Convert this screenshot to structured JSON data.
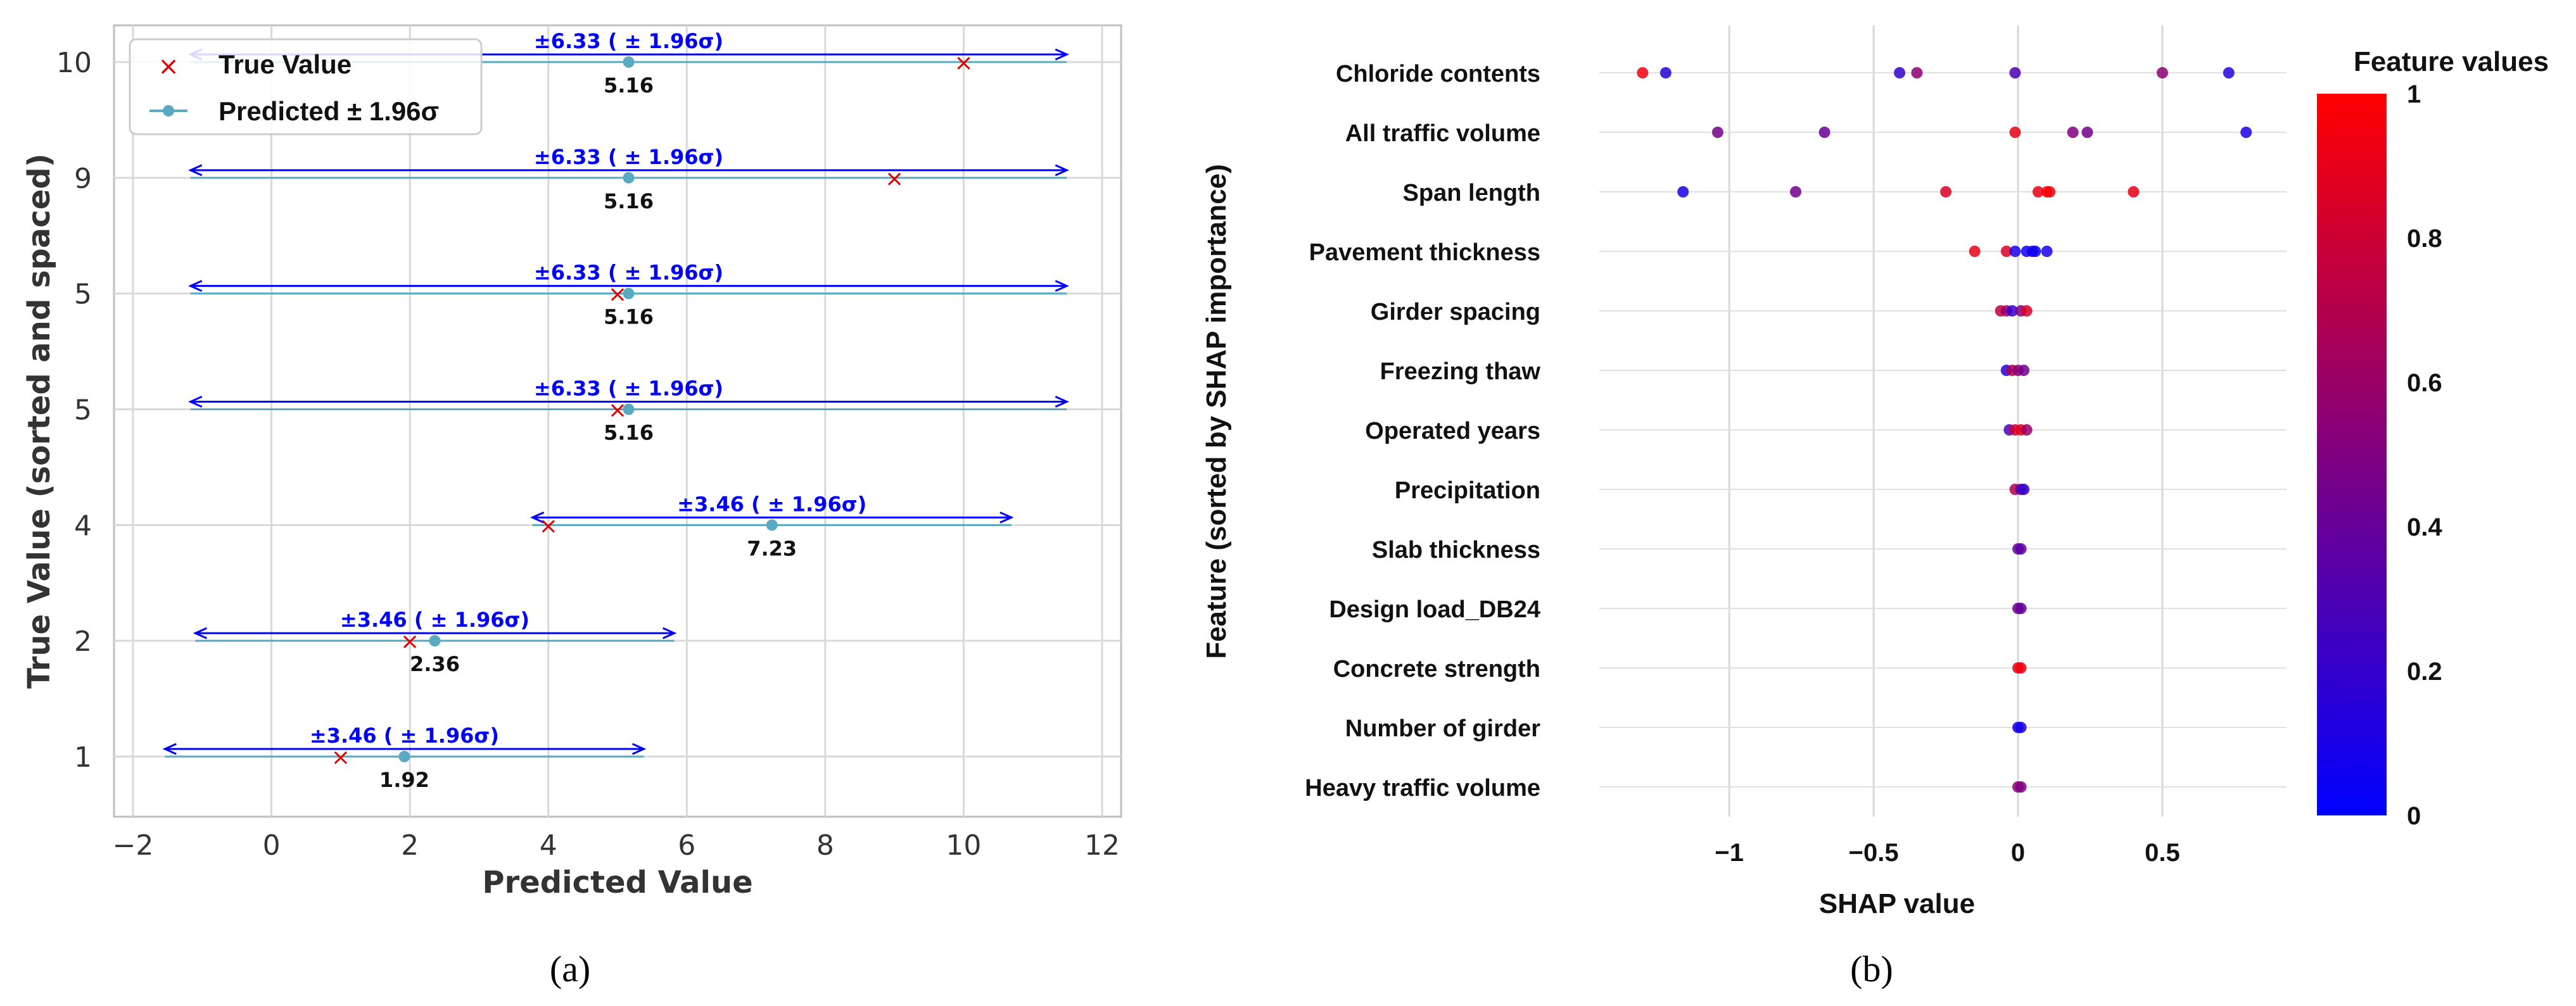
{
  "chart_data": [
    {
      "type": "scatter",
      "panel_label": "(a)",
      "xlabel": "Predicted Value",
      "ylabel": "True Value (sorted and spaced)",
      "xlim": [
        -2,
        12
      ],
      "x_ticks": [
        -2,
        0,
        2,
        4,
        6,
        8,
        10,
        12
      ],
      "x_tick_labels": [
        "−2",
        "0",
        "2",
        "4",
        "6",
        "8",
        "10",
        "12"
      ],
      "y_tick_labels": [
        "1",
        "2",
        "4",
        "5",
        "5",
        "9",
        "10"
      ],
      "legend": {
        "position": "top-left",
        "entries": [
          {
            "name": "True Value",
            "marker": "×",
            "color": "#e00000"
          },
          {
            "name": "Predicted ± 1.96σ",
            "marker": "●",
            "color": "#5aa9c2"
          }
        ]
      },
      "rows": [
        {
          "true_value": 1,
          "predicted": 1.92,
          "low": -1.54,
          "high": 5.38,
          "pred_label": "1.92",
          "interval_label": "±3.46 ( ± 1.96σ)"
        },
        {
          "true_value": 2,
          "predicted": 2.36,
          "low": -1.1,
          "high": 5.82,
          "pred_label": "2.36",
          "interval_label": "±3.46 ( ± 1.96σ)"
        },
        {
          "true_value": 4,
          "predicted": 7.23,
          "low": 3.77,
          "high": 10.69,
          "pred_label": "7.23",
          "interval_label": "±3.46 ( ± 1.96σ)"
        },
        {
          "true_value": 5,
          "predicted": 5.16,
          "low": -1.17,
          "high": 11.49,
          "pred_label": "5.16",
          "interval_label": "±6.33 ( ± 1.96σ)"
        },
        {
          "true_value": 5,
          "predicted": 5.16,
          "low": -1.17,
          "high": 11.49,
          "pred_label": "5.16",
          "interval_label": "±6.33 ( ± 1.96σ)"
        },
        {
          "true_value": 9,
          "predicted": 5.16,
          "low": -1.17,
          "high": 11.49,
          "pred_label": "5.16",
          "interval_label": "±6.33 ( ± 1.96σ)"
        },
        {
          "true_value": 10,
          "predicted": 5.16,
          "low": -1.17,
          "high": 11.49,
          "pred_label": "5.16",
          "interval_label": "±6.33 ( ± 1.96σ)"
        }
      ],
      "colors": {
        "true": "#e00000",
        "pred": "#5aa9c2",
        "interval": "#0000ff",
        "grid": "#d9d9d9"
      }
    },
    {
      "type": "scatter",
      "subtype": "shap-beeswarm",
      "panel_label": "(b)",
      "xlabel": "SHAP value",
      "ylabel": "Feature (sorted by SHAP importance)",
      "xlim": [
        -1.45,
        0.93
      ],
      "x_ticks": [
        -1,
        -0.5,
        0,
        0.5
      ],
      "x_tick_labels": [
        "−1",
        "−0.5",
        "0",
        "0.5"
      ],
      "colorbar": {
        "title": "Feature values",
        "ticks": [
          0,
          0.2,
          0.4,
          0.6,
          0.8,
          1
        ],
        "tick_labels": [
          "0",
          "0.2",
          "0.4",
          "0.6",
          "0.8",
          "1"
        ],
        "low_color": "#0000ff",
        "high_color": "#ff0000"
      },
      "features": [
        {
          "name": "Chloride contents",
          "points": [
            [
              -1.3,
              0.95
            ],
            [
              -1.22,
              0.15
            ],
            [
              -0.41,
              0.2
            ],
            [
              -0.35,
              0.55
            ],
            [
              -0.01,
              0.3
            ],
            [
              0.5,
              0.55
            ],
            [
              0.73,
              0.15
            ]
          ]
        },
        {
          "name": "All traffic volume",
          "points": [
            [
              -1.04,
              0.45
            ],
            [
              -0.67,
              0.4
            ],
            [
              -0.01,
              0.9
            ],
            [
              0.19,
              0.5
            ],
            [
              0.24,
              0.45
            ],
            [
              0.79,
              0.1
            ]
          ]
        },
        {
          "name": "Span length",
          "points": [
            [
              -1.16,
              0.1
            ],
            [
              -0.77,
              0.45
            ],
            [
              -0.25,
              0.85
            ],
            [
              0.07,
              0.9
            ],
            [
              0.1,
              1.0
            ],
            [
              0.11,
              0.95
            ],
            [
              0.4,
              0.9
            ]
          ]
        },
        {
          "name": "Pavement thickness",
          "points": [
            [
              -0.15,
              0.9
            ],
            [
              -0.04,
              0.85
            ],
            [
              -0.01,
              0.1
            ],
            [
              0.03,
              0.05
            ],
            [
              0.05,
              0.1
            ],
            [
              0.06,
              0.05
            ],
            [
              0.1,
              0.1
            ]
          ]
        },
        {
          "name": "Girder spacing",
          "points": [
            [
              -0.06,
              0.75
            ],
            [
              -0.04,
              0.6
            ],
            [
              -0.02,
              0.2
            ],
            [
              0.01,
              0.5
            ],
            [
              0.03,
              0.85
            ]
          ]
        },
        {
          "name": "Freezing thaw",
          "points": [
            [
              -0.04,
              0.15
            ],
            [
              -0.02,
              0.7
            ],
            [
              0.0,
              0.55
            ],
            [
              0.02,
              0.45
            ]
          ]
        },
        {
          "name": "Operated years",
          "points": [
            [
              -0.03,
              0.3
            ],
            [
              -0.01,
              0.8
            ],
            [
              0.01,
              0.9
            ],
            [
              0.03,
              0.6
            ]
          ]
        },
        {
          "name": "Precipitation",
          "points": [
            [
              -0.01,
              0.7
            ],
            [
              0.01,
              0.35
            ],
            [
              0.02,
              0.2
            ]
          ]
        },
        {
          "name": "Slab thickness",
          "points": [
            [
              0.0,
              0.4
            ],
            [
              0.01,
              0.35
            ]
          ]
        },
        {
          "name": "Design load_DB24",
          "points": [
            [
              0.0,
              0.45
            ],
            [
              0.01,
              0.4
            ]
          ]
        },
        {
          "name": "Concrete strength",
          "points": [
            [
              0.0,
              0.9
            ],
            [
              0.01,
              0.95
            ]
          ]
        },
        {
          "name": "Number of girder",
          "points": [
            [
              0.0,
              0.05
            ],
            [
              0.01,
              0.1
            ]
          ]
        },
        {
          "name": "Heavy traffic volume",
          "points": [
            [
              0.0,
              0.55
            ],
            [
              0.01,
              0.5
            ]
          ]
        }
      ]
    }
  ]
}
